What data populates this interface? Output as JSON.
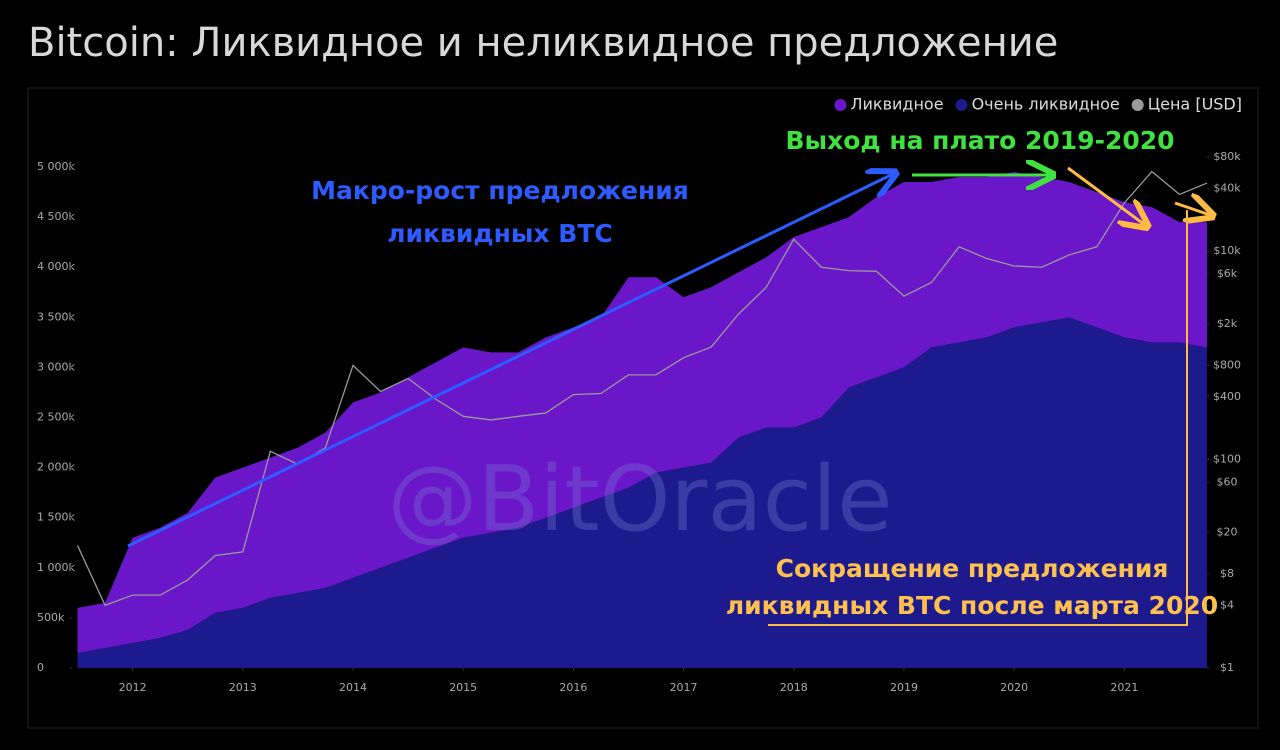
{
  "title": "Bitcoin: Ликвидное и неликвидное предложение",
  "chart_data": {
    "type": "stacked_area",
    "watermark": "@BitOracle",
    "x": [
      2011.5,
      2011.75,
      2012,
      2012.25,
      2012.5,
      2012.75,
      2013,
      2013.25,
      2013.5,
      2013.75,
      2014,
      2014.25,
      2014.5,
      2014.75,
      2015,
      2015.25,
      2015.5,
      2015.75,
      2016,
      2016.25,
      2016.5,
      2016.75,
      2017,
      2017.25,
      2017.5,
      2017.75,
      2018,
      2018.25,
      2018.5,
      2018.75,
      2019,
      2019.25,
      2019.5,
      2019.75,
      2020,
      2020.25,
      2020.5,
      2020.75,
      2021,
      2021.25,
      2021.5,
      2021.75
    ],
    "series": [
      {
        "name": "Ликвидное",
        "color": "#6a16c9",
        "values": [
          450000,
          450000,
          1050000,
          1100000,
          1170000,
          1350000,
          1400000,
          1400000,
          1450000,
          1550000,
          1750000,
          1750000,
          1800000,
          1850000,
          1900000,
          1800000,
          1750000,
          1800000,
          1800000,
          1800000,
          2100000,
          1950000,
          1700000,
          1750000,
          1650000,
          1700000,
          1900000,
          1900000,
          1700000,
          1800000,
          1850000,
          1650000,
          1650000,
          1600000,
          1550000,
          1450000,
          1350000,
          1350000,
          1350000,
          1350000,
          1200000,
          1250000
        ]
      },
      {
        "name": "Очень ликвидное",
        "color": "#1d1a8e",
        "values": [
          150000,
          200000,
          250000,
          300000,
          380000,
          550000,
          600000,
          700000,
          750000,
          800000,
          900000,
          1000000,
          1100000,
          1200000,
          1300000,
          1350000,
          1400000,
          1500000,
          1600000,
          1700000,
          1800000,
          1950000,
          2000000,
          2050000,
          2300000,
          2400000,
          2400000,
          2500000,
          2800000,
          2900000,
          3000000,
          3200000,
          3250000,
          3300000,
          3400000,
          3450000,
          3500000,
          3400000,
          3300000,
          3250000,
          3250000,
          3200000
        ]
      },
      {
        "name": "Цена [USD]",
        "color": "#9a9a9a",
        "axis": "y2",
        "values": [
          15,
          4,
          5,
          5,
          7,
          12,
          13,
          120,
          90,
          130,
          800,
          450,
          600,
          380,
          260,
          240,
          260,
          280,
          420,
          430,
          650,
          650,
          950,
          1200,
          2500,
          4500,
          13000,
          7000,
          6500,
          6400,
          3700,
          5000,
          11000,
          8500,
          7200,
          7000,
          9200,
          11000,
          29000,
          58000,
          35000,
          45000
        ]
      }
    ],
    "xlim": [
      2011.45,
      2021.75
    ],
    "xticks": [
      2012,
      2013,
      2014,
      2015,
      2016,
      2017,
      2018,
      2019,
      2020,
      2021
    ],
    "ylim": [
      0,
      5100000
    ],
    "yticks": [
      0,
      {
        "value": 500000,
        "label": "500k"
      },
      {
        "value": 1000000,
        "label": "1 000k"
      },
      {
        "value": 1500000,
        "label": "1 500k"
      },
      {
        "value": 2000000,
        "label": "2 000k"
      },
      {
        "value": 2500000,
        "label": "2 500k"
      },
      {
        "value": 3000000,
        "label": "3 000k"
      },
      {
        "value": 3500000,
        "label": "3 500k"
      },
      {
        "value": 4000000,
        "label": "4 000k"
      },
      {
        "value": 4500000,
        "label": "4 500k"
      },
      {
        "value": 5000000,
        "label": "5 000k"
      }
    ],
    "y2lim": [
      1,
      80000
    ],
    "y2log": true,
    "y2ticks": [
      {
        "value": 1,
        "label": "$1"
      },
      {
        "value": 4,
        "label": "$4"
      },
      {
        "value": 8,
        "label": "$8"
      },
      {
        "value": 20,
        "label": "$20"
      },
      {
        "value": 60,
        "label": "$60"
      },
      {
        "value": 100,
        "label": "$100"
      },
      {
        "value": 400,
        "label": "$400"
      },
      {
        "value": 800,
        "label": "$800"
      },
      {
        "value": 2000,
        "label": "$2k"
      },
      {
        "value": 6000,
        "label": "$6k"
      },
      {
        "value": 10000,
        "label": "$10k"
      },
      {
        "value": 40000,
        "label": "$40k"
      },
      {
        "value": 80000,
        "label": "$80k"
      }
    ],
    "annotations": {
      "macro": [
        "Макро-рост предложения",
        "ликвидных BTC"
      ],
      "plateau": "Выход на плато 2019-2020",
      "decline": [
        "Сокращение предложения",
        "ликвидных BTC после марта 2020"
      ]
    }
  }
}
